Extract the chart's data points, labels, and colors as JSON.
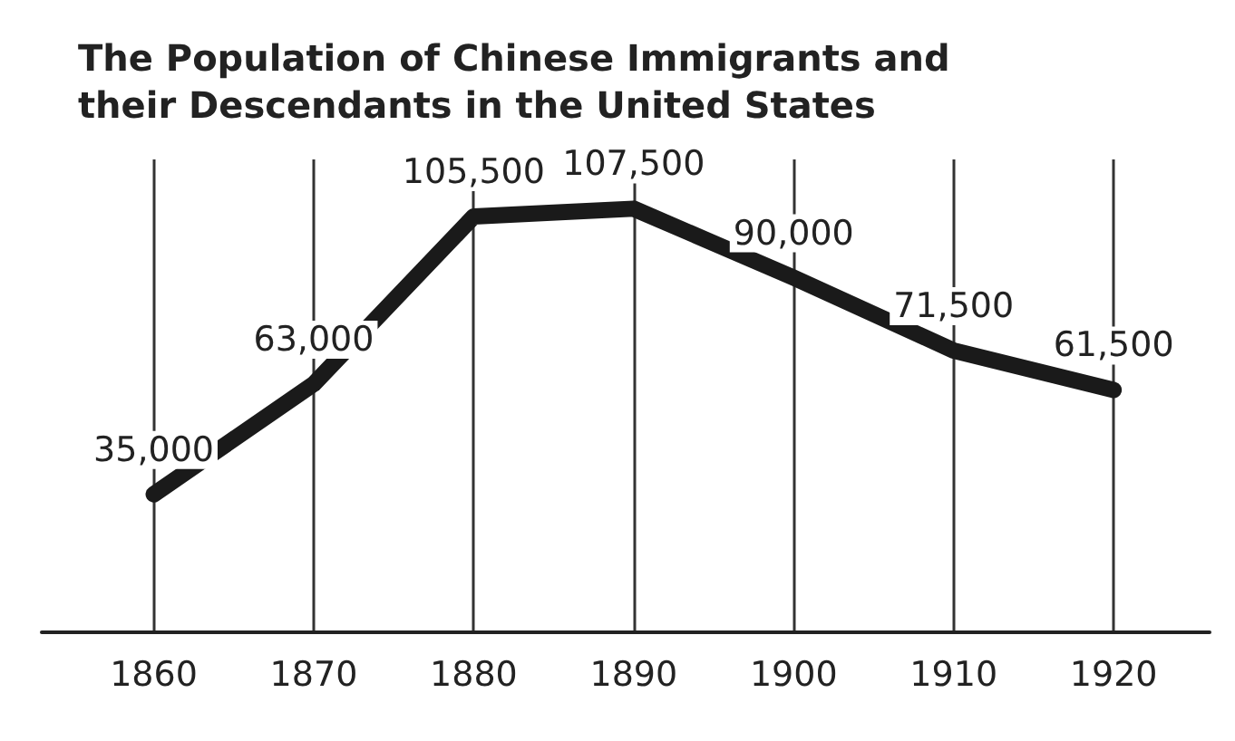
{
  "chart_data": {
    "type": "line",
    "title": "The Population of Chinese Immigrants and their Descendants in the United States",
    "x": [
      1860,
      1870,
      1880,
      1890,
      1900,
      1910,
      1920
    ],
    "series": [
      {
        "color": "#1a1a1a",
        "values": [
          35000,
          63000,
          105500,
          107500,
          90000,
          71500,
          61500
        ],
        "value_labels": [
          "35,000",
          "63,000",
          "105,500",
          "107,500",
          "90,000",
          "71,500",
          "61,500"
        ]
      }
    ],
    "xlim": [
      1853,
      1926
    ],
    "xticks": [
      1860,
      1870,
      1880,
      1890,
      1900,
      1910,
      1920
    ],
    "grid": "x",
    "marker": "none",
    "line_style": "solid"
  }
}
